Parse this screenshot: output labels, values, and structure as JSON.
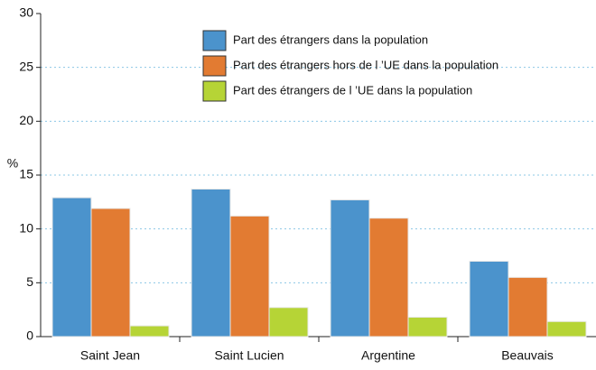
{
  "chart_data": {
    "type": "bar",
    "y_label": "%",
    "categories": [
      "Saint Jean",
      "Saint Lucien",
      "Argentine",
      "Beauvais"
    ],
    "series": [
      {
        "name": "Part des étrangers dans la population",
        "color": "#4b93cc",
        "values": [
          12.9,
          13.7,
          12.7,
          7.0
        ]
      },
      {
        "name": "Part des étrangers hors de l ’UE dans la population",
        "color": "#e27b32",
        "values": [
          11.9,
          11.2,
          11.0,
          5.5
        ]
      },
      {
        "name": "Part des étrangers de l ’UE dans la population",
        "color": "#b6d436",
        "values": [
          1.0,
          2.7,
          1.8,
          1.4
        ]
      }
    ],
    "ylim": [
      0,
      30
    ],
    "yticks": [
      0,
      5,
      10,
      15,
      20,
      25,
      30
    ],
    "grid": true
  }
}
